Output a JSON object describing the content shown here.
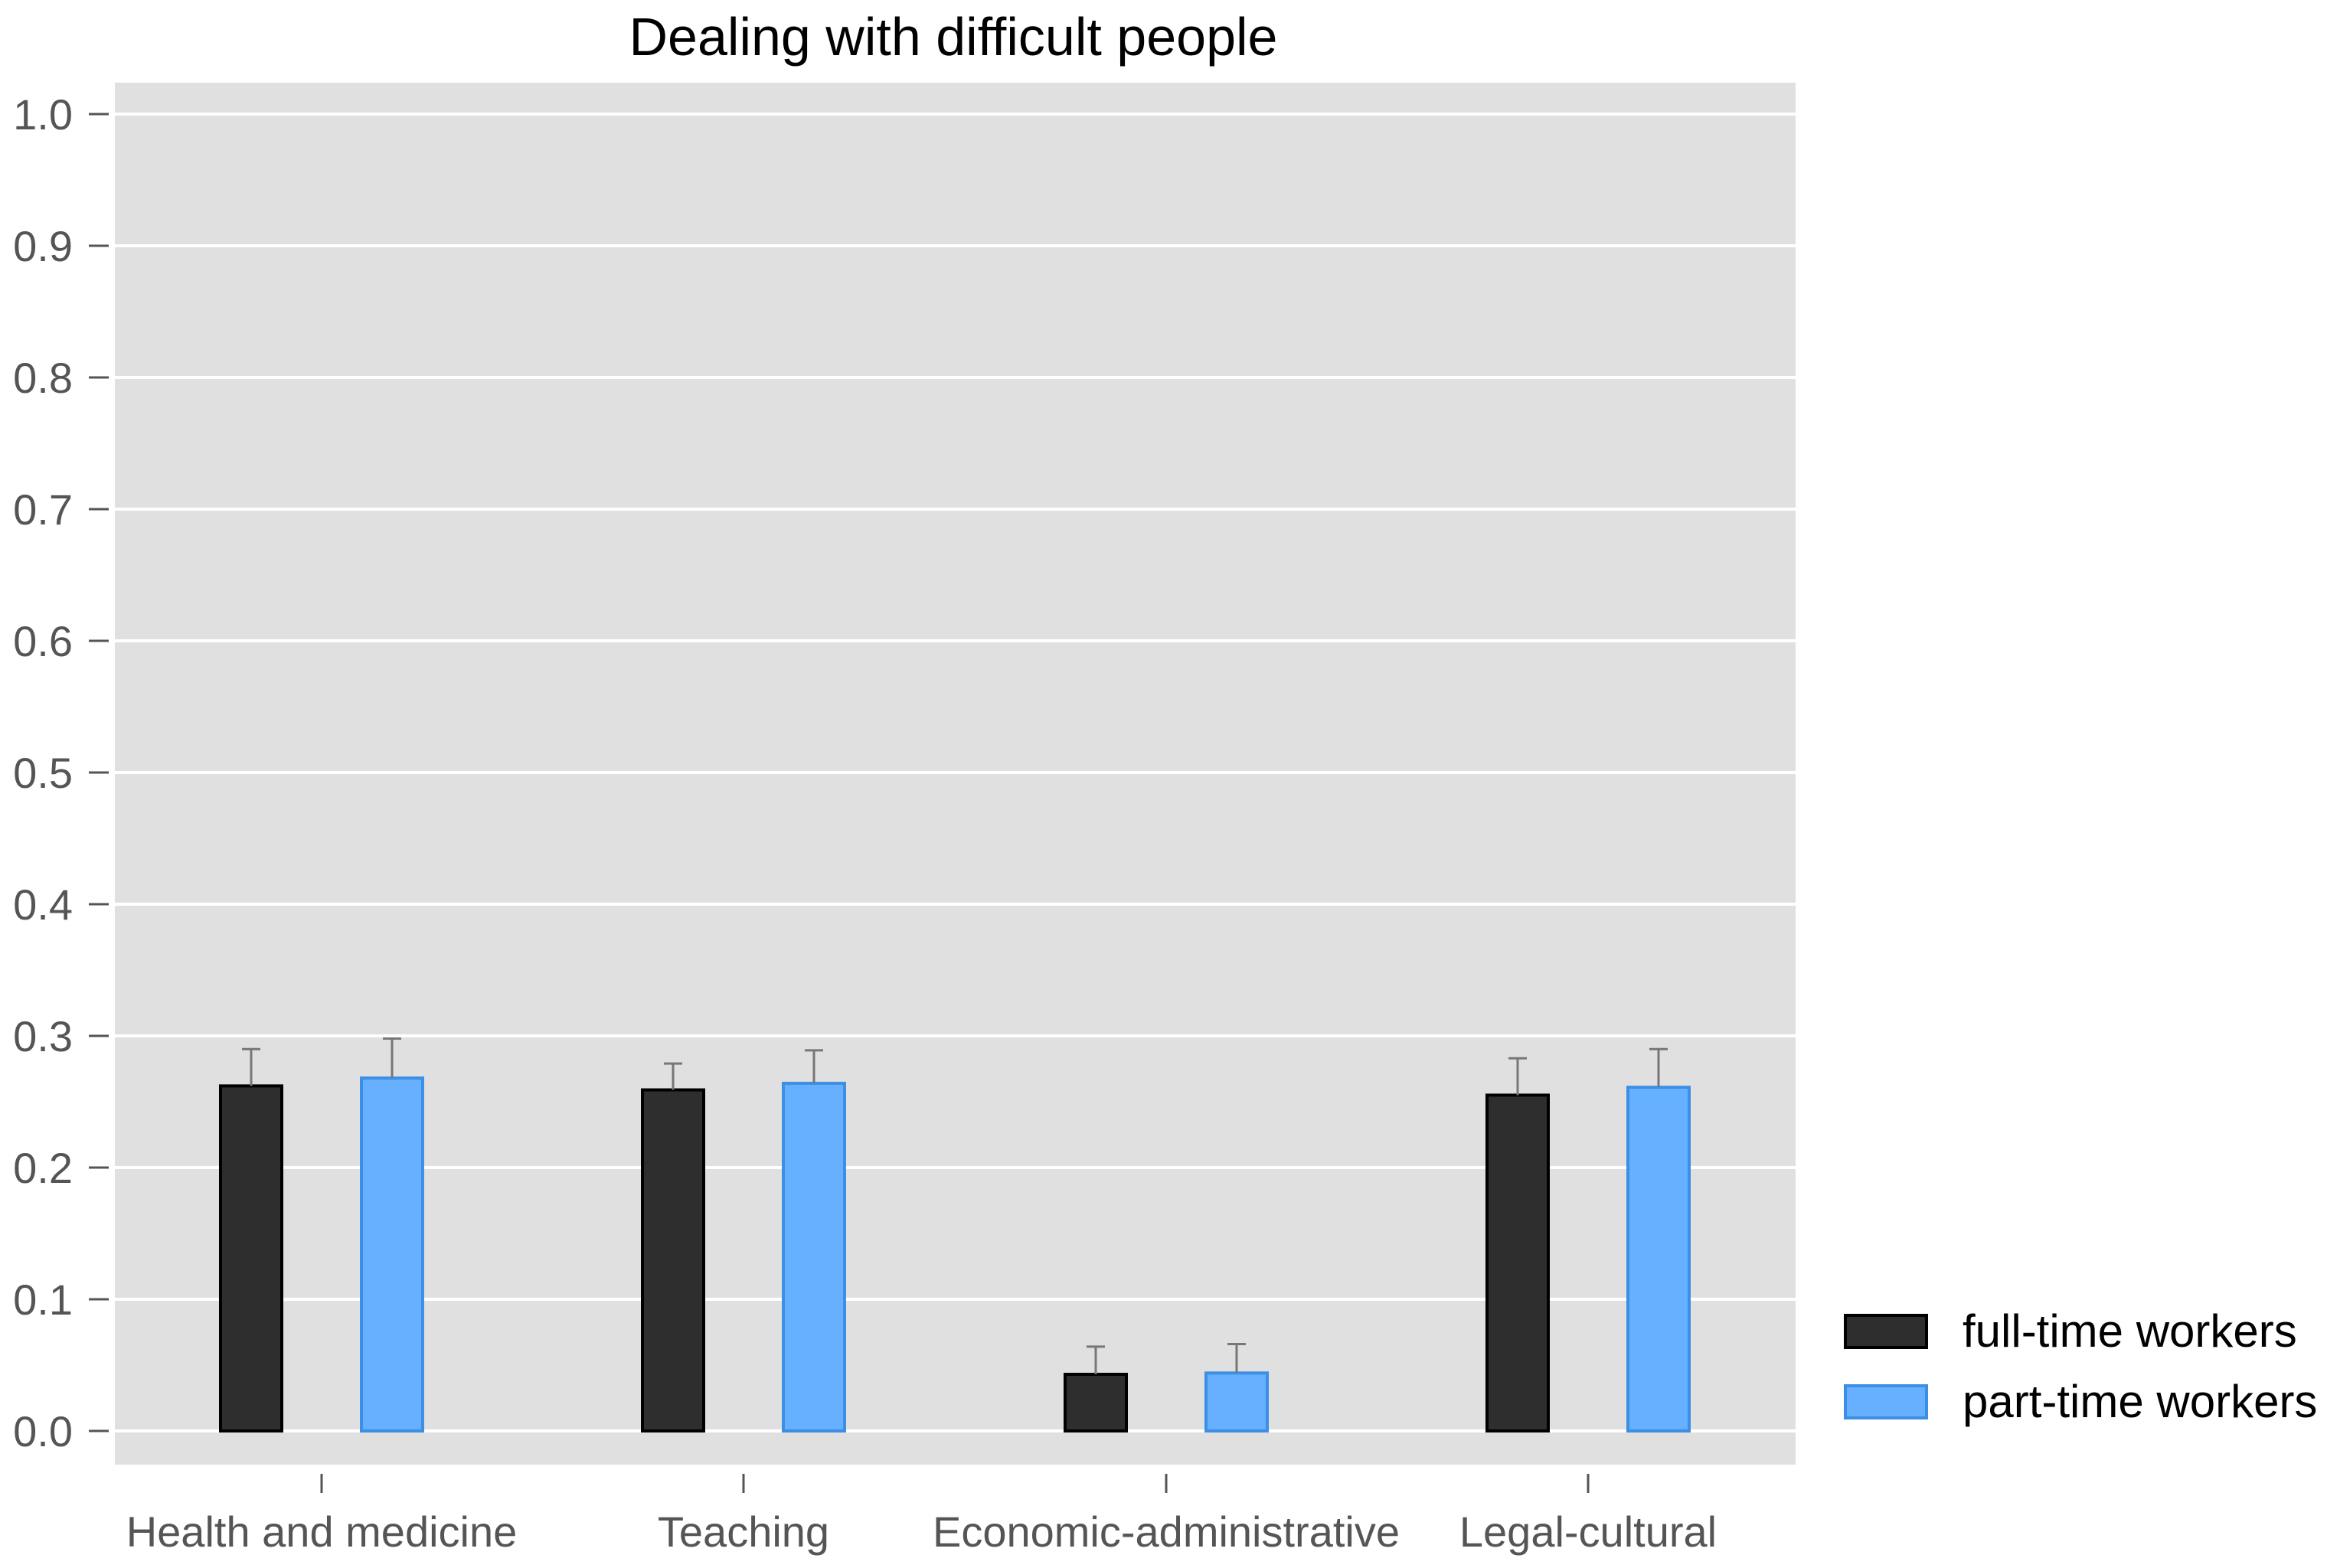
{
  "chart_data": {
    "type": "bar",
    "title": "Dealing with difficult people",
    "xlabel": "",
    "ylabel": "",
    "ylim": [
      0,
      1.0
    ],
    "yticks": [
      "0.0",
      "0.1",
      "0.2",
      "0.3",
      "0.4",
      "0.5",
      "0.6",
      "0.7",
      "0.8",
      "0.9",
      "1.0"
    ],
    "categories": [
      "Health and medicine",
      "Teaching",
      "Economic-administrative",
      "Legal-cultural"
    ],
    "series": [
      {
        "name": "full-time workers",
        "color": "#2e2e2e",
        "values": [
          0.262,
          0.259,
          0.043,
          0.255
        ],
        "error_upper": [
          0.29,
          0.279,
          0.064,
          0.283
        ]
      },
      {
        "name": "part-time workers",
        "color": "#66b0ff",
        "values": [
          0.268,
          0.264,
          0.044,
          0.261
        ],
        "error_upper": [
          0.298,
          0.289,
          0.066,
          0.29
        ]
      }
    ],
    "grid": true,
    "legend_position": "bottom-right"
  }
}
